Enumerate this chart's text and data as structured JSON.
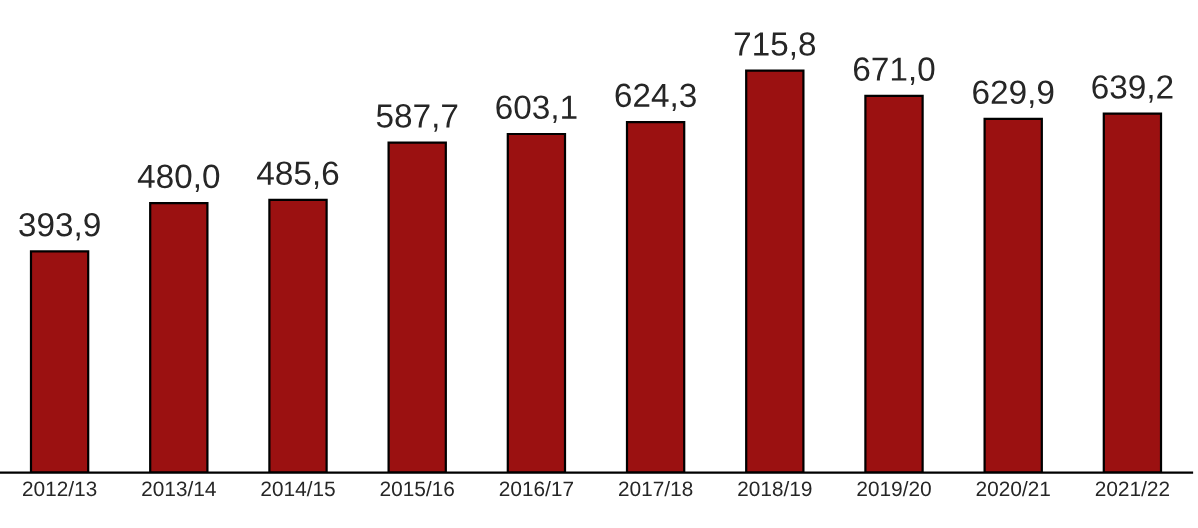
{
  "chart_data": {
    "type": "bar",
    "categories": [
      "2012/13",
      "2013/14",
      "2014/15",
      "2015/16",
      "2016/17",
      "2017/18",
      "2018/19",
      "2019/20",
      "2020/21",
      "2021/22"
    ],
    "values": [
      393.9,
      480.0,
      485.6,
      587.7,
      603.1,
      624.3,
      715.8,
      671.0,
      629.9,
      639.2
    ],
    "value_labels": [
      "393,9",
      "480,0",
      "485,6",
      "587,7",
      "603,1",
      "624,3",
      "715,8",
      "671,0",
      "629,9",
      "639,2"
    ],
    "color": "#9b1111",
    "grid": false,
    "legend": false,
    "tick_labels": "x"
  }
}
